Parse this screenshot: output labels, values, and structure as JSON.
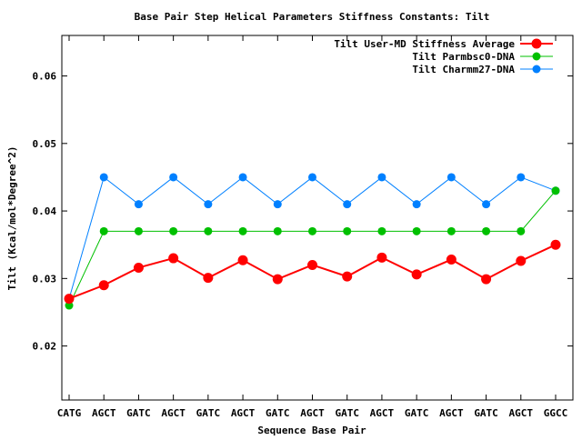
{
  "chart_data": {
    "type": "line",
    "title": "Base Pair Step Helical Parameters Stiffness Constants: Tilt",
    "xlabel": "Sequence Base Pair",
    "ylabel": "Tilt (Kcal/mol*Degree^2)",
    "categories": [
      "CATG",
      "AGCT",
      "GATC",
      "AGCT",
      "GATC",
      "AGCT",
      "GATC",
      "AGCT",
      "GATC",
      "AGCT",
      "GATC",
      "AGCT",
      "GATC",
      "AGCT",
      "GGCC"
    ],
    "ylim": [
      0.012,
      0.066
    ],
    "yticks": [
      0.02,
      0.03,
      0.04,
      0.05,
      0.06
    ],
    "ytick_labels": [
      "0.02",
      "0.03",
      "0.04",
      "0.05",
      "0.06"
    ],
    "grid": false,
    "legend_position": "top-right",
    "series": [
      {
        "name": "Tilt User-MD Stiffness Average",
        "color": "#ff0000",
        "values": [
          0.027,
          0.029,
          0.0316,
          0.033,
          0.0301,
          0.0327,
          0.0299,
          0.032,
          0.0303,
          0.0331,
          0.0306,
          0.0328,
          0.0299,
          0.0326,
          0.035
        ]
      },
      {
        "name": "Tilt Parmbsc0-DNA",
        "color": "#00c000",
        "values": [
          0.026,
          0.037,
          0.037,
          0.037,
          0.037,
          0.037,
          0.037,
          0.037,
          0.037,
          0.037,
          0.037,
          0.037,
          0.037,
          0.037,
          0.043
        ]
      },
      {
        "name": "Tilt Charmm27-DNA",
        "color": "#0080ff",
        "values": [
          0.027,
          0.045,
          0.041,
          0.045,
          0.041,
          0.045,
          0.041,
          0.045,
          0.041,
          0.045,
          0.041,
          0.045,
          0.041,
          0.045,
          0.043
        ]
      }
    ]
  }
}
